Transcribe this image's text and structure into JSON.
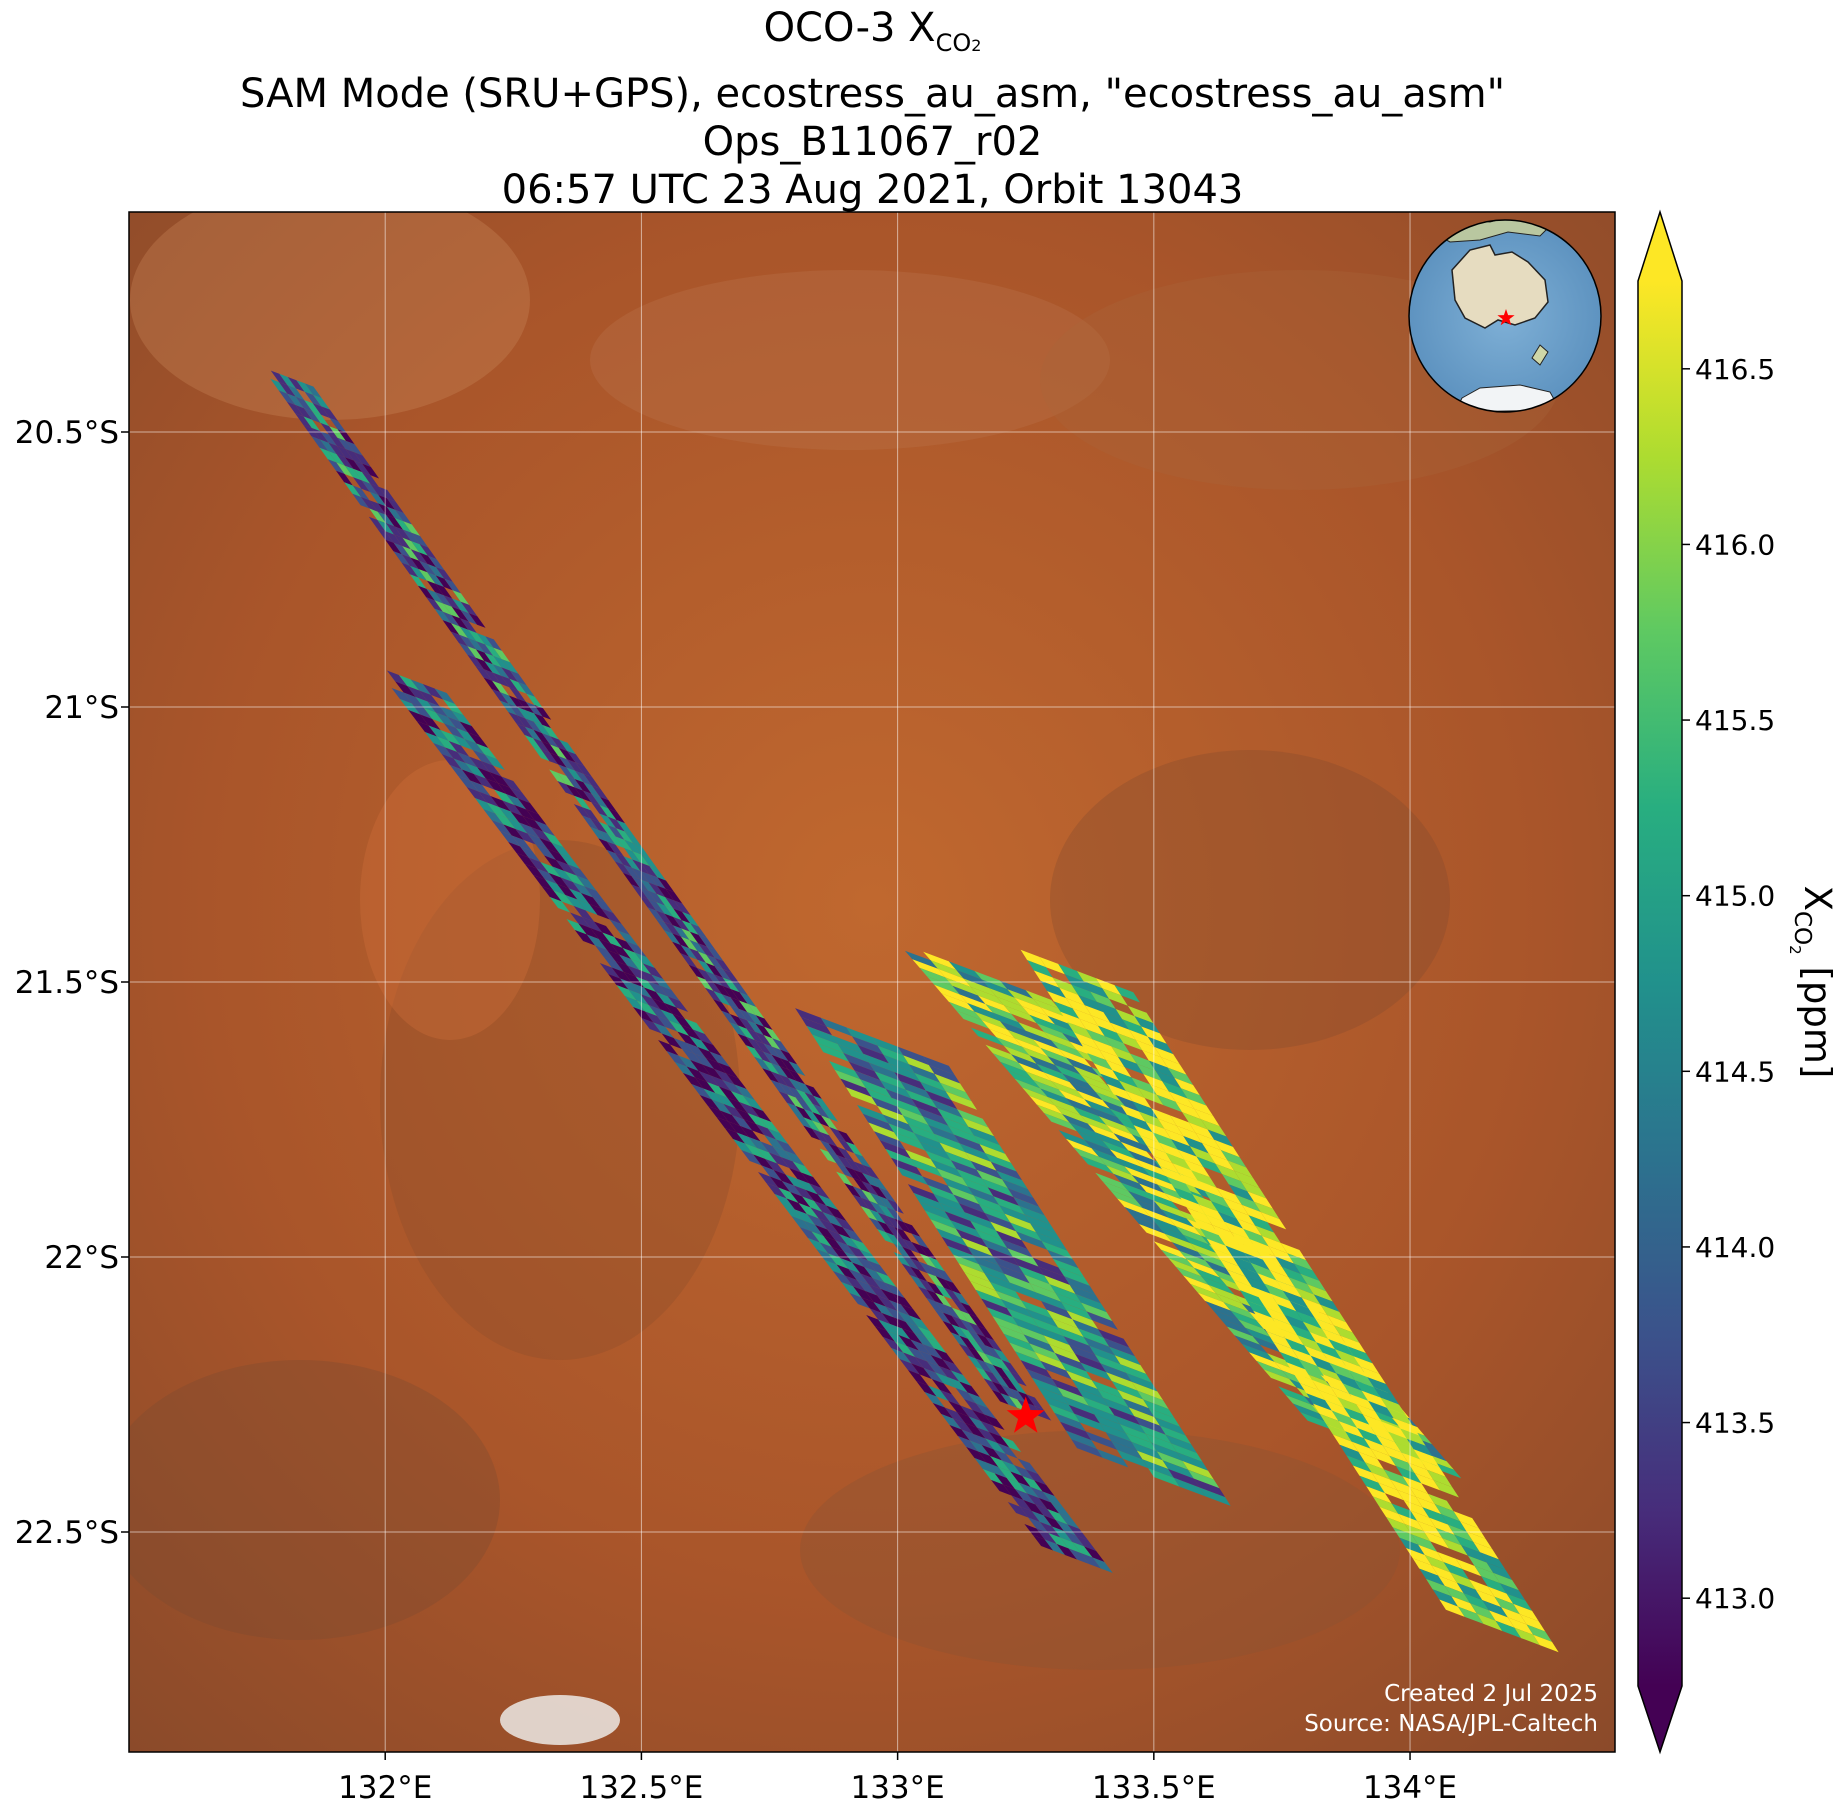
{
  "title": {
    "line1_prefix": "OCO-3 X",
    "line1_sub": "CO",
    "line1_sub2": "2",
    "line2": "SAM Mode (SRU+GPS), ecostress_au_asm, \"ecostress_au_asm\"",
    "line3": "Ops_B11067_r02",
    "line4": "06:57 UTC 23 Aug 2021, Orbit 13043"
  },
  "axes": {
    "x_ticks": [
      "132°E",
      "132.5°E",
      "133°E",
      "133.5°E",
      "134°E"
    ],
    "y_ticks": [
      "20.5°S",
      "21°S",
      "21.5°S",
      "22°S",
      "22.5°S"
    ],
    "x_values": [
      132,
      132.5,
      133,
      133.5,
      134
    ],
    "y_values": [
      -20.5,
      -21,
      -21.5,
      -22,
      -22.5
    ],
    "lon_range": [
      131.5,
      134.4
    ],
    "lat_range": [
      -22.9,
      -20.1
    ]
  },
  "colorbar": {
    "label_prefix": "X",
    "label_sub": "CO",
    "label_sub2": "2",
    "label_suffix": " [ppm]",
    "ticks": [
      "416.5",
      "416.0",
      "415.5",
      "415.0",
      "414.5",
      "414.0",
      "413.5",
      "413.0"
    ],
    "tick_values": [
      416.5,
      416.0,
      415.5,
      415.0,
      414.5,
      414.0,
      413.5,
      413.0
    ],
    "range": [
      412.75,
      416.75
    ],
    "colormap": "viridis",
    "extend": "both"
  },
  "target_marker": {
    "lon": 133.25,
    "lat": -22.29,
    "color": "#ff0000",
    "symbol": "star"
  },
  "credit": {
    "line1": "Created 2 Jul 2025",
    "line2": "Source: NASA/JPL-Caltech"
  },
  "inset_globe": {
    "centered_on": "Australia",
    "marker_color": "#ff0000"
  },
  "basemap": {
    "type": "satellite imagery",
    "dominant_color": "#b35c2a"
  },
  "grid": true
}
